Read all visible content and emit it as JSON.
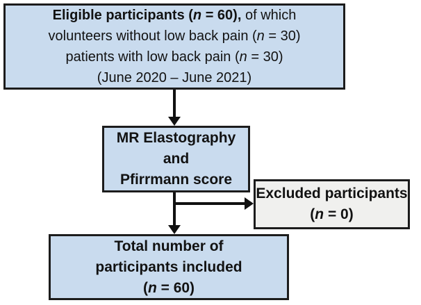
{
  "figure": {
    "type": "flowchart",
    "background": "#ffffff",
    "box_fill_blue": "#c9dbee",
    "box_fill_gray": "#f0f0ee",
    "border_color": "#1c1c1c",
    "arrow_color": "#111111"
  },
  "eligible_box": {
    "line1_bold_pre": "Eligible participants (",
    "line1_bold_italic_n": "n",
    "line1_bold_post": " = 60),",
    "line1_regular": " of which",
    "line2_pre": "volunteers without low back pain (",
    "line2_italic_n": "n",
    "line2_post": " = 30)",
    "line3_pre": "patients with low back pain (",
    "line3_italic_n": "n",
    "line3_post": " = 30)",
    "line4": "(June 2020 – June 2021)"
  },
  "mre_box": {
    "line1": "MR Elastography",
    "line2": "and",
    "line3": "Pfirrmann score"
  },
  "excluded_box": {
    "line1": "Excluded participants",
    "line2_pre": "(",
    "line2_italic_n": "n",
    "line2_post": " = 0)"
  },
  "total_box": {
    "line1": "Total number of",
    "line2": "participants included",
    "line3_pre": "(",
    "line3_italic_n": "n",
    "line3_post": " = 60)"
  },
  "edges": [
    {
      "from": "eligible-participants-box",
      "to": "mr-elastography-box"
    },
    {
      "from": "mr-elastography-box",
      "to": "excluded-participants-box"
    },
    {
      "from": "mr-elastography-box",
      "to": "total-included-box"
    }
  ]
}
